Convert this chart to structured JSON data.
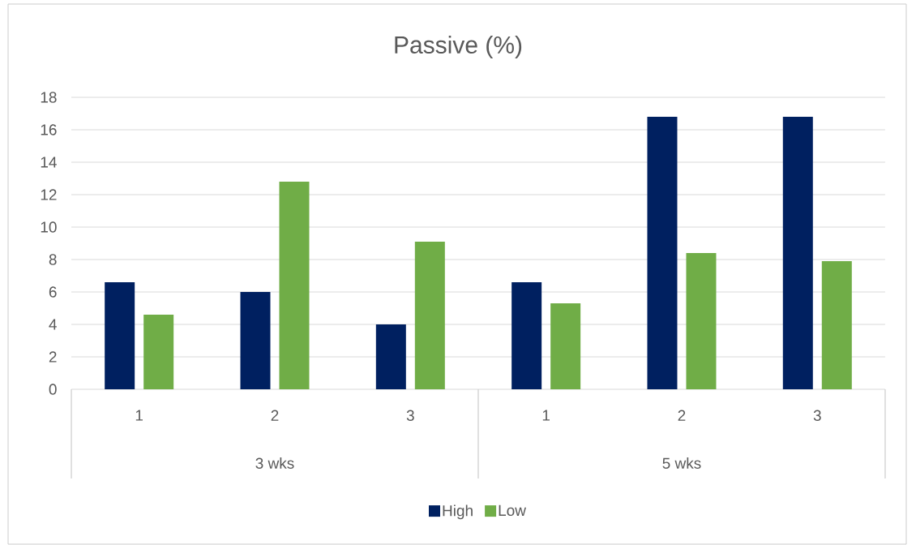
{
  "chart_data": {
    "type": "bar",
    "title": "Passive (%)",
    "categories": [
      "1",
      "2",
      "3",
      "1",
      "2",
      "3"
    ],
    "annotations": [
      "3 wks",
      "5 wks"
    ],
    "series": [
      {
        "name": "High",
        "color": "#002060",
        "values": [
          6.6,
          6.0,
          4.0,
          6.6,
          16.8,
          16.8
        ]
      },
      {
        "name": "Low",
        "color": "#70ad47",
        "values": [
          4.6,
          12.8,
          9.1,
          5.3,
          8.4,
          7.9
        ]
      }
    ],
    "ylim": [
      0,
      18
    ],
    "yticks": [
      0,
      2,
      4,
      6,
      8,
      10,
      12,
      14,
      16,
      18
    ],
    "grid": "y",
    "legend": "bottom"
  }
}
